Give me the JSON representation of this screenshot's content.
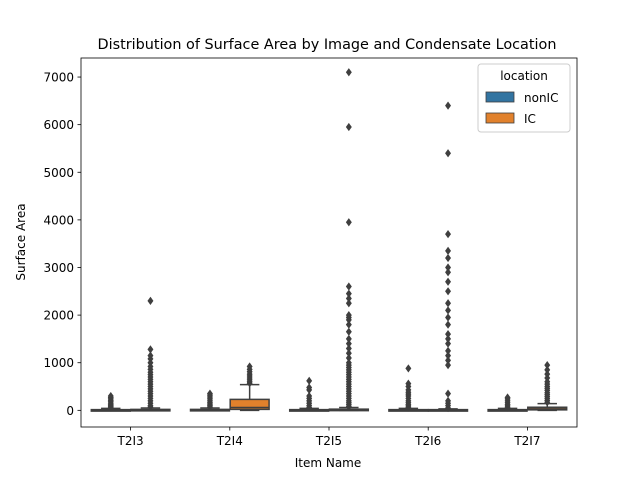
{
  "chart_data": {
    "type": "box",
    "title": "Distribution of Surface Area by Image and Condensate Location",
    "xlabel": "Item Name",
    "ylabel": "Surface Area",
    "categories": [
      "T2I3",
      "T2I4",
      "T2I5",
      "T2I6",
      "T2I7"
    ],
    "ylim": [
      -350,
      7400
    ],
    "yticks": [
      0,
      1000,
      2000,
      3000,
      4000,
      5000,
      6000,
      7000
    ],
    "legend": {
      "title": "location",
      "placement": "upper right",
      "entries": [
        "nonIC",
        "IC"
      ]
    },
    "grid": false,
    "series": [
      {
        "name": "nonIC",
        "color": "#3274a1",
        "boxes": [
          {
            "q1": 0,
            "median": 5,
            "q3": 15,
            "whisker_low": 0,
            "whisker_high": 40,
            "outliers": [
              60,
              80,
              100,
              120,
              150,
              180,
              210,
              240,
              270,
              300
            ]
          },
          {
            "q1": 0,
            "median": 5,
            "q3": 20,
            "whisker_low": 0,
            "whisker_high": 50,
            "outliers": [
              70,
              100,
              130,
              160,
              200,
              240,
              280,
              320,
              350
            ]
          },
          {
            "q1": 0,
            "median": 5,
            "q3": 15,
            "whisker_low": 0,
            "whisker_high": 40,
            "outliers": [
              60,
              100,
              150,
              200,
              250,
              300,
              430,
              480,
              620
            ]
          },
          {
            "q1": 0,
            "median": 5,
            "q3": 15,
            "whisker_low": 0,
            "whisker_high": 40,
            "outliers": [
              60,
              90,
              120,
              160,
              200,
              250,
              300,
              340,
              380,
              430,
              500,
              560,
              880
            ]
          },
          {
            "q1": 0,
            "median": 5,
            "q3": 15,
            "whisker_low": 0,
            "whisker_high": 40,
            "outliers": [
              60,
              90,
              120,
              160,
              200,
              240,
              270
            ]
          }
        ]
      },
      {
        "name": "IC",
        "color": "#e1812c",
        "boxes": [
          {
            "q1": 0,
            "median": 5,
            "q3": 20,
            "whisker_low": 0,
            "whisker_high": 50,
            "outliers": [
              70,
              100,
              150,
              200,
              250,
              300,
              350,
              400,
              450,
              500,
              550,
              600,
              650,
              700,
              750,
              800,
              860,
              920,
              1000,
              1080,
              1150,
              1280,
              2300
            ]
          },
          {
            "q1": 20,
            "median": 60,
            "q3": 230,
            "whisker_low": 0,
            "whisker_high": 540,
            "outliers": [
              570,
              600,
              640,
              680,
              720,
              760,
              810,
              860,
              920
            ]
          },
          {
            "q1": 0,
            "median": 5,
            "q3": 25,
            "whisker_low": 0,
            "whisker_high": 60,
            "outliers": [
              80,
              120,
              160,
              200,
              250,
              300,
              350,
              400,
              450,
              500,
              550,
              600,
              650,
              700,
              750,
              800,
              850,
              900,
              950,
              1000,
              1100,
              1200,
              1300,
              1400,
              1500,
              1650,
              1800,
              1900,
              1950,
              2000,
              2250,
              2350,
              2450,
              2600,
              3950,
              5950,
              7100
            ]
          },
          {
            "q1": 0,
            "median": 5,
            "q3": 15,
            "whisker_low": 0,
            "whisker_high": 30,
            "outliers": [
              50,
              100,
              150,
              200,
              350,
              950,
              1050,
              1150,
              1250,
              1400,
              1500,
              1600,
              1800,
              1950,
              2100,
              2250,
              2500,
              2700,
              2900,
              3000,
              3200,
              3350,
              3700,
              5400,
              6400
            ]
          },
          {
            "q1": 10,
            "median": 30,
            "q3": 65,
            "whisker_low": 0,
            "whisker_high": 140,
            "outliers": [
              170,
              210,
              250,
              290,
              330,
              370,
              420,
              460,
              500,
              550,
              600,
              680,
              760,
              850,
              950
            ]
          }
        ]
      }
    ]
  }
}
